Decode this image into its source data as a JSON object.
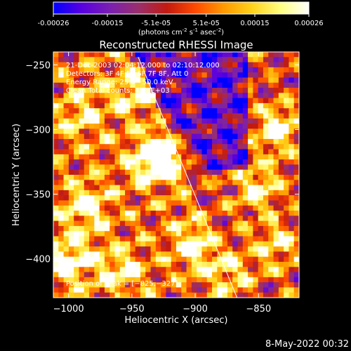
{
  "colorbar": {
    "tick_labels": [
      "-0.00026",
      "-0.00015",
      "-5.1e-05",
      "5.1e-05",
      "0.00015",
      "0.00026"
    ],
    "tick_values": [
      -0.00026,
      -0.00015,
      -5.1e-05,
      5.1e-05,
      0.00015,
      0.00026
    ],
    "range": [
      -0.00026,
      0.00026
    ],
    "unit_parts": [
      "(photons cm",
      "-2",
      " s",
      "-1",
      " asec",
      "-2",
      ")"
    ],
    "colors": [
      "#0000ff",
      "#5a00e0",
      "#7a1fb0",
      "#9a2f6c",
      "#c21a10",
      "#ff4a00",
      "#ff9a00",
      "#ffd21a",
      "#ffff80",
      "#ffffff"
    ]
  },
  "chart_data": {
    "type": "heatmap",
    "title": "Reconstructed RHESSI Image",
    "xlabel": "Heliocentric X (arcsec)",
    "ylabel": "Heliocentric Y (arcsec)",
    "xlim": [
      -1012,
      -818
    ],
    "ylim": [
      -430,
      -240
    ],
    "x_ticks": [
      -1000,
      -950,
      -900,
      -850
    ],
    "x_tick_labels": [
      "−1000",
      "−950",
      "−900",
      "−850"
    ],
    "y_ticks": [
      -250,
      -300,
      -350,
      -400
    ],
    "y_tick_labels": [
      "−250",
      "−300",
      "−350",
      "−400"
    ],
    "limb_line": {
      "from": [
        -945,
        -244
      ],
      "to": [
        -867,
        -430
      ]
    },
    "peak": [
      -825,
      -327
    ],
    "annotations": [
      "21-Dec-2003 02:04:12.000 to 02:10:12.000",
      "Detectors: 3F 4F 5F 6F 7F 8F, Att 0",
      "Energy Range: 25.0 - 50.0 keV",
      "Clean     Total counts: 4.28E+03"
    ],
    "peak_label": "Position of Peak = [−825,−327]",
    "emission_centers": [
      {
        "x": -935,
        "y": -325,
        "value": 0.00022
      },
      {
        "x": -920,
        "y": -320,
        "value": 0.00024
      },
      {
        "x": -900,
        "y": -390,
        "value": 0.0002
      },
      {
        "x": -850,
        "y": -345,
        "value": 0.00022
      },
      {
        "x": -835,
        "y": -300,
        "value": 0.00026
      },
      {
        "x": -835,
        "y": -390,
        "value": 0.0002
      },
      {
        "x": -985,
        "y": -360,
        "value": 0.0002
      },
      {
        "x": -1000,
        "y": -400,
        "value": 0.00024
      },
      {
        "x": -960,
        "y": -410,
        "value": 0.00018
      },
      {
        "x": -950,
        "y": -270,
        "value": 0.00018
      },
      {
        "x": -990,
        "y": -290,
        "value": 0.00016
      },
      {
        "x": -870,
        "y": -410,
        "value": 0.00016
      }
    ]
  },
  "footer": {
    "timestamp": "8-May-2022 00:32"
  }
}
